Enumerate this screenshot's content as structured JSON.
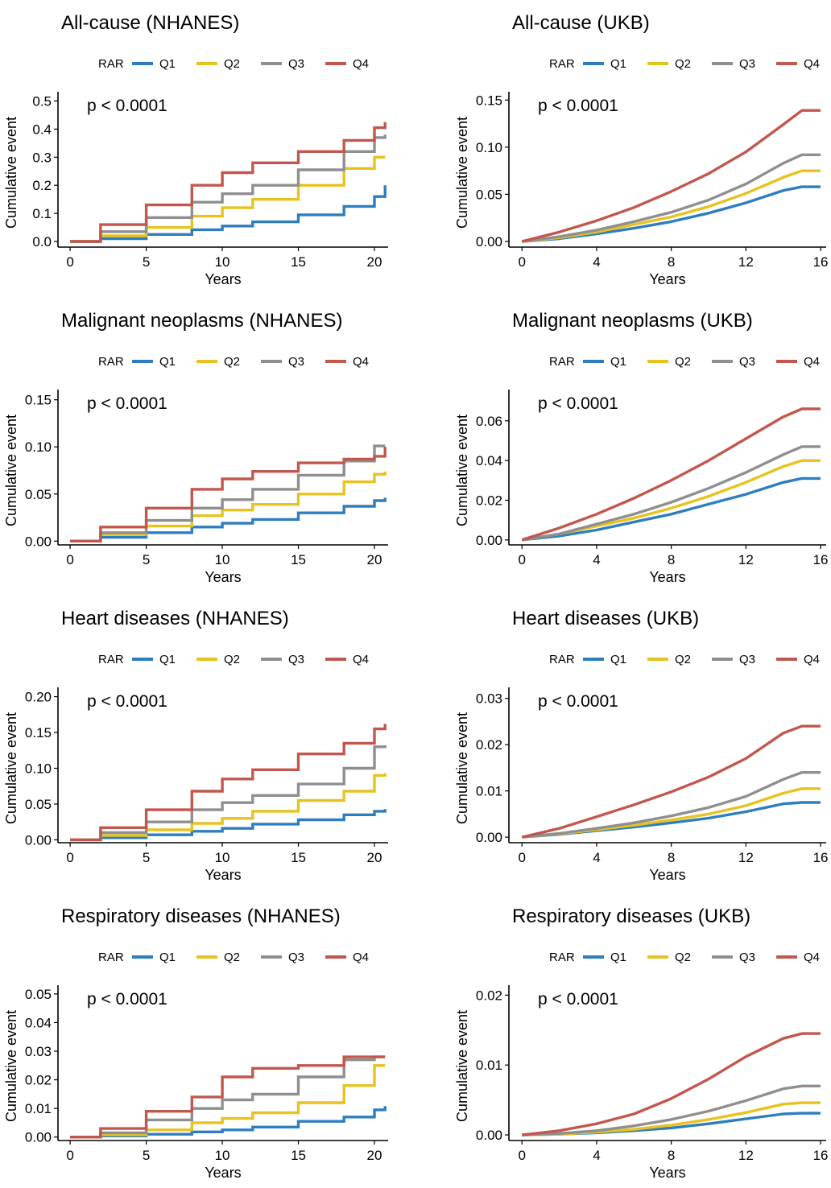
{
  "figure": {
    "colors": {
      "Q1": "#2E7EBF",
      "Q2": "#E8C21F",
      "Q3": "#8F8F8F",
      "Q4": "#C2574D"
    },
    "legend_title": "RAR",
    "legend_labels": [
      "Q1",
      "Q2",
      "Q3",
      "Q4"
    ],
    "ylabel": "Cumulative event",
    "xlabel": "Years",
    "pvalue": "p < 0.0001"
  },
  "chart_data": [
    {
      "type": "line",
      "title": "All-cause (NHANES)",
      "step": true,
      "xlabel": "Years",
      "ylabel": "Cumulative event",
      "xlim": [
        -0.8,
        20.9
      ],
      "ylim": [
        -0.02,
        0.51
      ],
      "xticks": [
        0,
        5,
        10,
        15,
        20
      ],
      "yticks": [
        0.0,
        0.1,
        0.2,
        0.3,
        0.4,
        0.5
      ],
      "ytick_labels": [
        "0.0",
        "0.1",
        "0.2",
        "0.3",
        "0.4",
        "0.5"
      ],
      "annotation": "p < 0.0001",
      "legend_title": "RAR",
      "legend": "top",
      "series": [
        {
          "name": "Q1",
          "x": [
            0,
            2,
            5,
            8,
            10,
            12,
            15,
            18,
            20,
            20.7,
            20.7
          ],
          "y": [
            0,
            0.01,
            0.025,
            0.042,
            0.055,
            0.07,
            0.095,
            0.125,
            0.16,
            0.18,
            0.2
          ]
        },
        {
          "name": "Q2",
          "x": [
            0,
            2,
            5,
            8,
            10,
            12,
            15,
            18,
            20,
            20.7
          ],
          "y": [
            0,
            0.02,
            0.05,
            0.09,
            0.12,
            0.15,
            0.2,
            0.26,
            0.3,
            0.3
          ]
        },
        {
          "name": "Q3",
          "x": [
            0,
            2,
            5,
            8,
            10,
            12,
            15,
            18,
            20,
            20.7
          ],
          "y": [
            0,
            0.035,
            0.085,
            0.14,
            0.17,
            0.2,
            0.255,
            0.32,
            0.37,
            0.38
          ]
        },
        {
          "name": "Q4",
          "x": [
            0,
            2,
            5,
            8,
            10,
            12,
            15,
            18,
            20,
            20.7
          ],
          "y": [
            0,
            0.06,
            0.13,
            0.2,
            0.245,
            0.28,
            0.32,
            0.36,
            0.405,
            0.425
          ]
        }
      ]
    },
    {
      "type": "line",
      "title": "All-cause (UKB)",
      "step": false,
      "xlabel": "Years",
      "ylabel": "Cumulative event",
      "xlim": [
        -0.7,
        16.3
      ],
      "ylim": [
        -0.006,
        0.152
      ],
      "xticks": [
        0,
        4,
        8,
        12,
        16
      ],
      "yticks": [
        0.0,
        0.05,
        0.1,
        0.15
      ],
      "ytick_labels": [
        "0.00",
        "0.05",
        "0.10",
        "0.15"
      ],
      "annotation": "p < 0.0001",
      "legend_title": "RAR",
      "legend": "top",
      "series": [
        {
          "name": "Q1",
          "x": [
            0,
            2,
            4,
            6,
            8,
            10,
            12,
            14,
            15,
            16
          ],
          "y": [
            0,
            0.003,
            0.008,
            0.014,
            0.021,
            0.03,
            0.041,
            0.054,
            0.058,
            0.058
          ]
        },
        {
          "name": "Q2",
          "x": [
            0,
            2,
            4,
            6,
            8,
            10,
            12,
            14,
            15,
            16
          ],
          "y": [
            0,
            0.004,
            0.01,
            0.018,
            0.026,
            0.037,
            0.051,
            0.068,
            0.075,
            0.075
          ]
        },
        {
          "name": "Q3",
          "x": [
            0,
            2,
            4,
            6,
            8,
            10,
            12,
            14,
            15,
            16
          ],
          "y": [
            0,
            0.005,
            0.012,
            0.021,
            0.031,
            0.044,
            0.061,
            0.083,
            0.092,
            0.092
          ]
        },
        {
          "name": "Q4",
          "x": [
            0,
            2,
            4,
            6,
            8,
            10,
            12,
            14,
            15,
            16
          ],
          "y": [
            0,
            0.01,
            0.022,
            0.036,
            0.053,
            0.072,
            0.095,
            0.124,
            0.139,
            0.139
          ]
        }
      ]
    },
    {
      "type": "line",
      "title": "Malignant neoplasms (NHANES)",
      "step": true,
      "xlabel": "Years",
      "ylabel": "Cumulative event",
      "xlim": [
        -0.8,
        20.9
      ],
      "ylim": [
        -0.004,
        0.154
      ],
      "xticks": [
        0,
        5,
        10,
        15,
        20
      ],
      "yticks": [
        0.0,
        0.05,
        0.1,
        0.15
      ],
      "ytick_labels": [
        "0.00",
        "0.05",
        "0.10",
        "0.15"
      ],
      "annotation": "p < 0.0001",
      "legend_title": "RAR",
      "legend": "top",
      "series": [
        {
          "name": "Q1",
          "x": [
            0,
            2,
            5,
            8,
            10,
            12,
            15,
            18,
            20,
            20.7
          ],
          "y": [
            0,
            0.004,
            0.009,
            0.015,
            0.019,
            0.023,
            0.03,
            0.037,
            0.043,
            0.046
          ]
        },
        {
          "name": "Q2",
          "x": [
            0,
            2,
            5,
            8,
            10,
            12,
            15,
            18,
            20,
            20.7
          ],
          "y": [
            0,
            0.007,
            0.016,
            0.027,
            0.033,
            0.039,
            0.05,
            0.063,
            0.071,
            0.074
          ]
        },
        {
          "name": "Q3",
          "x": [
            0,
            2,
            5,
            8,
            10,
            12,
            15,
            18,
            20,
            20.7
          ],
          "y": [
            0,
            0.009,
            0.022,
            0.035,
            0.044,
            0.055,
            0.07,
            0.085,
            0.101,
            0.101
          ]
        },
        {
          "name": "Q4",
          "x": [
            0,
            2,
            5,
            8,
            10,
            12,
            15,
            18,
            20,
            20.7,
            20.7
          ],
          "y": [
            0,
            0.015,
            0.035,
            0.055,
            0.066,
            0.074,
            0.083,
            0.087,
            0.09,
            0.09,
            0.1
          ]
        }
      ]
    },
    {
      "type": "line",
      "title": "Malignant neoplasms (UKB)",
      "step": false,
      "xlabel": "Years",
      "ylabel": "Cumulative event",
      "xlim": [
        -0.7,
        16.3
      ],
      "ylim": [
        -0.0025,
        0.0725
      ],
      "xticks": [
        0,
        4,
        8,
        12,
        16
      ],
      "yticks": [
        0.0,
        0.02,
        0.04,
        0.06
      ],
      "ytick_labels": [
        "0.00",
        "0.02",
        "0.04",
        "0.06"
      ],
      "annotation": "p < 0.0001",
      "legend_title": "RAR",
      "legend": "top",
      "series": [
        {
          "name": "Q1",
          "x": [
            0,
            2,
            4,
            6,
            8,
            10,
            12,
            14,
            15,
            16
          ],
          "y": [
            0,
            0.002,
            0.005,
            0.009,
            0.013,
            0.018,
            0.023,
            0.029,
            0.031,
            0.031
          ]
        },
        {
          "name": "Q2",
          "x": [
            0,
            2,
            4,
            6,
            8,
            10,
            12,
            14,
            15,
            16
          ],
          "y": [
            0,
            0.003,
            0.007,
            0.011,
            0.016,
            0.022,
            0.029,
            0.037,
            0.04,
            0.04
          ]
        },
        {
          "name": "Q3",
          "x": [
            0,
            2,
            4,
            6,
            8,
            10,
            12,
            14,
            15,
            16
          ],
          "y": [
            0,
            0.003,
            0.008,
            0.013,
            0.019,
            0.026,
            0.034,
            0.043,
            0.047,
            0.047
          ]
        },
        {
          "name": "Q4",
          "x": [
            0,
            2,
            4,
            6,
            8,
            10,
            12,
            14,
            15,
            16
          ],
          "y": [
            0,
            0.006,
            0.013,
            0.021,
            0.03,
            0.04,
            0.051,
            0.062,
            0.066,
            0.066
          ]
        }
      ]
    },
    {
      "type": "line",
      "title": "Heart diseases (NHANES)",
      "step": true,
      "xlabel": "Years",
      "ylabel": "Cumulative event",
      "xlim": [
        -0.8,
        20.9
      ],
      "ylim": [
        -0.004,
        0.204
      ],
      "xticks": [
        0,
        5,
        10,
        15,
        20
      ],
      "yticks": [
        0.0,
        0.05,
        0.1,
        0.15,
        0.2
      ],
      "ytick_labels": [
        "0.00",
        "0.05",
        "0.10",
        "0.15",
        "0.20"
      ],
      "annotation": "p < 0.0001",
      "legend_title": "RAR",
      "legend": "top",
      "series": [
        {
          "name": "Q1",
          "x": [
            0,
            2,
            5,
            8,
            10,
            12,
            15,
            18,
            20,
            20.7
          ],
          "y": [
            0,
            0.003,
            0.007,
            0.012,
            0.016,
            0.022,
            0.028,
            0.035,
            0.04,
            0.043
          ]
        },
        {
          "name": "Q2",
          "x": [
            0,
            2,
            5,
            8,
            10,
            12,
            15,
            18,
            20,
            20.7
          ],
          "y": [
            0,
            0.006,
            0.014,
            0.023,
            0.03,
            0.04,
            0.055,
            0.068,
            0.09,
            0.093
          ]
        },
        {
          "name": "Q3",
          "x": [
            0,
            2,
            5,
            8,
            10,
            12,
            15,
            18,
            20,
            20.7
          ],
          "y": [
            0,
            0.01,
            0.025,
            0.042,
            0.052,
            0.062,
            0.078,
            0.1,
            0.13,
            0.132
          ]
        },
        {
          "name": "Q4",
          "x": [
            0,
            2,
            5,
            8,
            10,
            12,
            15,
            18,
            20,
            20.7
          ],
          "y": [
            0,
            0.017,
            0.042,
            0.068,
            0.085,
            0.098,
            0.12,
            0.135,
            0.155,
            0.162
          ]
        }
      ]
    },
    {
      "type": "line",
      "title": "Heart diseases (UKB)",
      "step": false,
      "xlabel": "Years",
      "ylabel": "Cumulative event",
      "xlim": [
        -0.7,
        16.3
      ],
      "ylim": [
        -0.0012,
        0.031
      ],
      "xticks": [
        0,
        4,
        8,
        12,
        16
      ],
      "yticks": [
        0.0,
        0.01,
        0.02,
        0.03
      ],
      "ytick_labels": [
        "0.00",
        "0.01",
        "0.02",
        "0.03"
      ],
      "annotation": "p < 0.0001",
      "legend_title": "RAR",
      "legend": "top",
      "series": [
        {
          "name": "Q1",
          "x": [
            0,
            2,
            4,
            6,
            8,
            10,
            12,
            14,
            15,
            16
          ],
          "y": [
            0,
            0.0006,
            0.0014,
            0.0022,
            0.0031,
            0.0041,
            0.0055,
            0.0072,
            0.0075,
            0.0075
          ]
        },
        {
          "name": "Q2",
          "x": [
            0,
            2,
            4,
            6,
            8,
            10,
            12,
            14,
            15,
            16
          ],
          "y": [
            0,
            0.0007,
            0.0016,
            0.0026,
            0.0037,
            0.005,
            0.0068,
            0.0095,
            0.0105,
            0.0105
          ]
        },
        {
          "name": "Q3",
          "x": [
            0,
            2,
            4,
            6,
            8,
            10,
            12,
            14,
            15,
            16
          ],
          "y": [
            0,
            0.0008,
            0.0019,
            0.0031,
            0.0046,
            0.0064,
            0.0088,
            0.0125,
            0.014,
            0.014
          ]
        },
        {
          "name": "Q4",
          "x": [
            0,
            2,
            4,
            6,
            8,
            10,
            12,
            14,
            15,
            16
          ],
          "y": [
            0,
            0.0019,
            0.0044,
            0.007,
            0.0098,
            0.013,
            0.017,
            0.0225,
            0.024,
            0.024
          ]
        }
      ]
    },
    {
      "type": "line",
      "title": "Respiratory diseases (NHANES)",
      "step": true,
      "xlabel": "Years",
      "ylabel": "Cumulative event",
      "xlim": [
        -0.8,
        20.9
      ],
      "ylim": [
        -0.0012,
        0.0508
      ],
      "xticks": [
        0,
        5,
        10,
        15,
        20
      ],
      "yticks": [
        0.0,
        0.01,
        0.02,
        0.03,
        0.04,
        0.05
      ],
      "ytick_labels": [
        "0.00",
        "0.01",
        "0.02",
        "0.03",
        "0.04",
        "0.05"
      ],
      "annotation": "p < 0.0001",
      "legend_title": "RAR",
      "legend": "top",
      "series": [
        {
          "name": "Q1",
          "x": [
            0,
            2,
            5,
            8,
            10,
            12,
            15,
            18,
            20,
            20.7
          ],
          "y": [
            0,
            0.0004,
            0.001,
            0.0018,
            0.0025,
            0.0035,
            0.0055,
            0.007,
            0.0095,
            0.0108
          ]
        },
        {
          "name": "Q2",
          "x": [
            0,
            2,
            5,
            8,
            10,
            12,
            15,
            18,
            20,
            20.7
          ],
          "y": [
            0,
            0.0008,
            0.0025,
            0.005,
            0.0065,
            0.0085,
            0.012,
            0.018,
            0.025,
            0.025
          ]
        },
        {
          "name": "Q3",
          "x": [
            0,
            2,
            5,
            8,
            10,
            12,
            15,
            18,
            20,
            20.7
          ],
          "y": [
            0,
            0.0015,
            0.006,
            0.01,
            0.013,
            0.015,
            0.021,
            0.027,
            0.028,
            0.028
          ]
        },
        {
          "name": "Q4",
          "x": [
            0,
            2,
            5,
            8,
            10,
            12,
            15,
            18,
            20,
            20.7
          ],
          "y": [
            0,
            0.003,
            0.009,
            0.014,
            0.021,
            0.024,
            0.025,
            0.028,
            0.028,
            0.028
          ]
        }
      ]
    },
    {
      "type": "line",
      "title": "Respiratory diseases (UKB)",
      "step": false,
      "xlabel": "Years",
      "ylabel": "Cumulative event",
      "xlim": [
        -0.7,
        16.3
      ],
      "ylim": [
        -0.0008,
        0.0205
      ],
      "xticks": [
        0,
        4,
        8,
        12,
        16
      ],
      "yticks": [
        0.0,
        0.01,
        0.02
      ],
      "ytick_labels": [
        "0.00",
        "0.01",
        "0.02"
      ],
      "annotation": "p < 0.0001",
      "legend_title": "RAR",
      "legend": "top",
      "series": [
        {
          "name": "Q1",
          "x": [
            0,
            2,
            4,
            6,
            8,
            10,
            12,
            14,
            15,
            16
          ],
          "y": [
            0,
            0.0001,
            0.0003,
            0.0006,
            0.001,
            0.0016,
            0.0023,
            0.003,
            0.0031,
            0.0031
          ]
        },
        {
          "name": "Q2",
          "x": [
            0,
            2,
            4,
            6,
            8,
            10,
            12,
            14,
            15,
            16
          ],
          "y": [
            0,
            0.0001,
            0.0004,
            0.0008,
            0.0014,
            0.0022,
            0.0032,
            0.0044,
            0.0046,
            0.0046
          ]
        },
        {
          "name": "Q3",
          "x": [
            0,
            2,
            4,
            6,
            8,
            10,
            12,
            14,
            15,
            16
          ],
          "y": [
            0,
            0.0002,
            0.0006,
            0.0013,
            0.0022,
            0.0034,
            0.0049,
            0.0066,
            0.007,
            0.007
          ]
        },
        {
          "name": "Q4",
          "x": [
            0,
            2,
            4,
            6,
            8,
            10,
            12,
            14,
            15,
            16
          ],
          "y": [
            0,
            0.0006,
            0.0016,
            0.003,
            0.0052,
            0.008,
            0.0112,
            0.0138,
            0.0145,
            0.0145
          ]
        }
      ]
    }
  ]
}
